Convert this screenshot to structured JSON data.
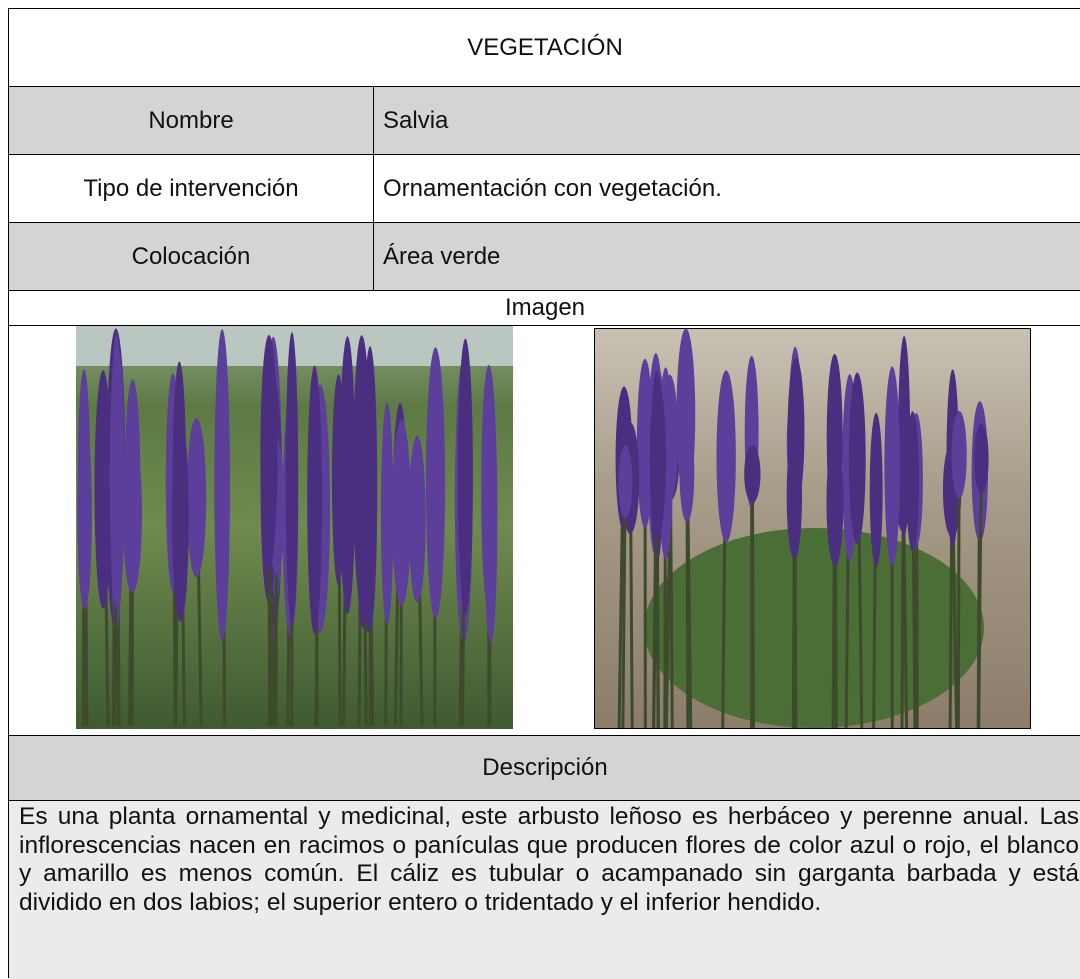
{
  "header": {
    "title": "VEGETACIÓN"
  },
  "rows": [
    {
      "label": "Nombre",
      "value": "Salvia"
    },
    {
      "label": "Tipo de intervención",
      "value": "Ornamentación con vegetación."
    },
    {
      "label": "Colocación",
      "value": "Área verde"
    }
  ],
  "image_header": "Imagen",
  "description_header": "Descripción",
  "description": "Es una planta ornamental y medicinal, este arbusto leñoso es herbáceo y perenne anual. Las inflorescencias nacen en racimos o panículas que producen flores de color azul o rojo, el blanco y amarillo es menos común. El cáliz es tubular o acampanado sin garganta barbada y está dividido en dos labios; el superior entero o tridentado y el inferior hendido."
}
